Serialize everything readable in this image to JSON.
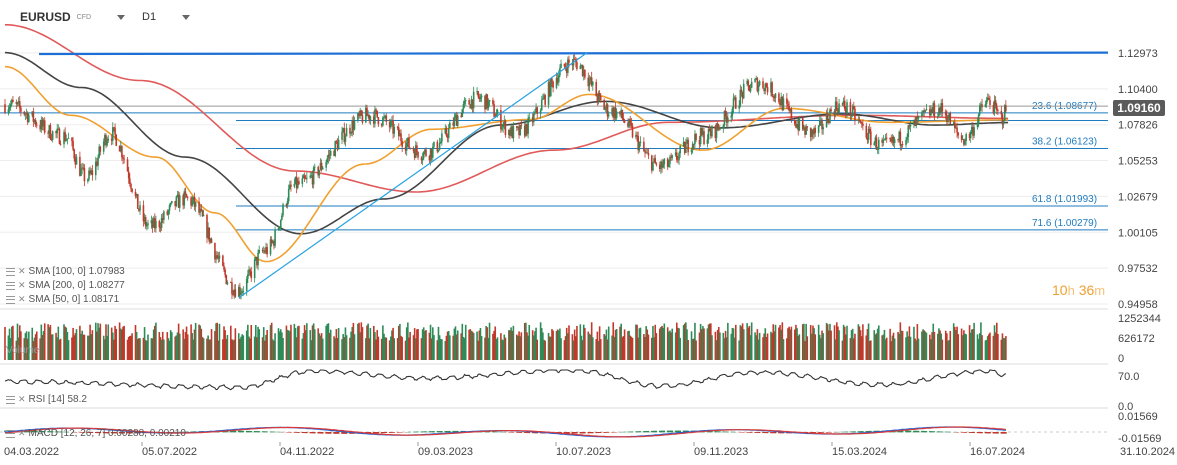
{
  "header": {
    "symbol": "EURUSD",
    "instrument_type": "CFD",
    "timeframe": "D1"
  },
  "current_price": "1.09160",
  "countdown": {
    "hours": "10",
    "hours_unit": "h",
    "minutes": "36",
    "minutes_unit": "m"
  },
  "legend": [
    {
      "text": "SMA [100, 0] 1.07983"
    },
    {
      "text": "SMA [200, 0] 1.08277"
    },
    {
      "text": "SMA [50, 0] 1.08171"
    }
  ],
  "volume_label": "Volume",
  "rsi_label": "RSI [14] 58.2",
  "macd_label": "MACD [12, 26, 7] 0.00288, 0.00210",
  "colors": {
    "up": "#2e8b57",
    "down": "#c0392b",
    "sma50": "#f0a030",
    "sma100": "#444444",
    "sma200": "#e05a5a",
    "fib": "#1f7bc0",
    "trend": "#29a3e0",
    "resistance": "#1d6fd6"
  },
  "chart_data": {
    "type": "candlestick",
    "x_labels": [
      "04.03.2022",
      "05.07.2022",
      "04.11.2022",
      "09.03.2023",
      "10.07.2023",
      "09.11.2023",
      "15.03.2024",
      "16.07.2024",
      "31.10.2024"
    ],
    "price_ticks": [
      "1.12973",
      "1.10400",
      "1.07826",
      "1.05253",
      "1.02679",
      "1.00105",
      "0.97532",
      "0.94958"
    ],
    "price_range": [
      0.94958,
      1.12973
    ],
    "volume_ticks": [
      "1252344",
      "626172",
      "0"
    ],
    "volume_range": [
      0,
      1252344
    ],
    "rsi_ticks": [
      "70.0",
      "0.0"
    ],
    "macd_ticks": [
      "0.01569",
      "-0.01569"
    ],
    "fib_levels": [
      {
        "label": "23.6 (1.08677)",
        "value": 1.08677
      },
      {
        "label": "38.2 (1.06123)",
        "value": 1.06123
      },
      {
        "label": "61.8 (1.01993)",
        "value": 1.01993
      },
      {
        "label": "71.6 (1.00279)",
        "value": 1.00279
      }
    ],
    "resistance_line": [
      {
        "date": "2022-04-03",
        "price": 1.129
      },
      {
        "date": "2024-10-31",
        "price": 1.13
      }
    ],
    "trend_line": [
      {
        "date": "2022-09-26",
        "price": 0.954
      },
      {
        "date": "2023-07-30",
        "price": 1.13
      }
    ],
    "close_path": [
      {
        "date": "2022-03-04",
        "price": 1.093
      },
      {
        "date": "2022-04-25",
        "price": 1.07
      },
      {
        "date": "2022-05-15",
        "price": 1.04
      },
      {
        "date": "2022-06-05",
        "price": 1.072
      },
      {
        "date": "2022-07-10",
        "price": 1.005
      },
      {
        "date": "2022-08-10",
        "price": 1.025
      },
      {
        "date": "2022-09-26",
        "price": 0.96
      },
      {
        "date": "2022-10-20",
        "price": 0.988
      },
      {
        "date": "2022-11-15",
        "price": 1.035
      },
      {
        "date": "2023-01-20",
        "price": 1.085
      },
      {
        "date": "2023-03-09",
        "price": 1.058
      },
      {
        "date": "2023-04-25",
        "price": 1.097
      },
      {
        "date": "2023-05-28",
        "price": 1.072
      },
      {
        "date": "2023-07-18",
        "price": 1.123
      },
      {
        "date": "2023-08-20",
        "price": 1.088
      },
      {
        "date": "2023-10-03",
        "price": 1.048
      },
      {
        "date": "2023-11-09",
        "price": 1.07
      },
      {
        "date": "2023-12-28",
        "price": 1.108
      },
      {
        "date": "2024-02-14",
        "price": 1.072
      },
      {
        "date": "2024-03-08",
        "price": 1.092
      },
      {
        "date": "2024-04-16",
        "price": 1.063
      },
      {
        "date": "2024-06-05",
        "price": 1.089
      },
      {
        "date": "2024-06-26",
        "price": 1.068
      },
      {
        "date": "2024-07-18",
        "price": 1.095
      },
      {
        "date": "2024-07-29",
        "price": 1.083
      },
      {
        "date": "2024-08-04",
        "price": 1.0916
      }
    ],
    "sma50_path": [
      {
        "date": "2022-03-04",
        "price": 1.12
      },
      {
        "date": "2022-05-01",
        "price": 1.085
      },
      {
        "date": "2022-07-15",
        "price": 1.055
      },
      {
        "date": "2022-09-05",
        "price": 1.015
      },
      {
        "date": "2022-10-20",
        "price": 0.98
      },
      {
        "date": "2023-01-15",
        "price": 1.05
      },
      {
        "date": "2023-03-15",
        "price": 1.075
      },
      {
        "date": "2023-06-10",
        "price": 1.082
      },
      {
        "date": "2023-08-01",
        "price": 1.1
      },
      {
        "date": "2023-11-09",
        "price": 1.06
      },
      {
        "date": "2024-01-20",
        "price": 1.09
      },
      {
        "date": "2024-04-20",
        "price": 1.08
      },
      {
        "date": "2024-08-04",
        "price": 1.0817
      }
    ],
    "sma100_path": [
      {
        "date": "2022-03-04",
        "price": 1.13
      },
      {
        "date": "2022-05-10",
        "price": 1.105
      },
      {
        "date": "2022-08-10",
        "price": 1.055
      },
      {
        "date": "2022-11-20",
        "price": 1.0
      },
      {
        "date": "2023-02-01",
        "price": 1.025
      },
      {
        "date": "2023-05-15",
        "price": 1.078
      },
      {
        "date": "2023-08-15",
        "price": 1.095
      },
      {
        "date": "2023-11-25",
        "price": 1.076
      },
      {
        "date": "2024-03-10",
        "price": 1.086
      },
      {
        "date": "2024-06-01",
        "price": 1.078
      },
      {
        "date": "2024-08-04",
        "price": 1.0798
      }
    ],
    "sma200_path": [
      {
        "date": "2022-03-04",
        "price": 1.15
      },
      {
        "date": "2022-07-01",
        "price": 1.11
      },
      {
        "date": "2022-11-15",
        "price": 1.045
      },
      {
        "date": "2023-03-01",
        "price": 1.03
      },
      {
        "date": "2023-07-01",
        "price": 1.06
      },
      {
        "date": "2023-10-10",
        "price": 1.08
      },
      {
        "date": "2024-03-20",
        "price": 1.085
      },
      {
        "date": "2024-08-04",
        "price": 1.0828
      }
    ],
    "rsi_path": [
      {
        "date": "2022-03-04",
        "value": 45
      },
      {
        "date": "2022-09-26",
        "value": 32
      },
      {
        "date": "2022-12-01",
        "value": 68
      },
      {
        "date": "2023-03-09",
        "value": 52
      },
      {
        "date": "2023-07-18",
        "value": 70
      },
      {
        "date": "2023-10-03",
        "value": 35
      },
      {
        "date": "2023-12-28",
        "value": 65
      },
      {
        "date": "2024-04-16",
        "value": 38
      },
      {
        "date": "2024-07-18",
        "value": 68
      },
      {
        "date": "2024-08-04",
        "value": 58.2
      }
    ]
  }
}
